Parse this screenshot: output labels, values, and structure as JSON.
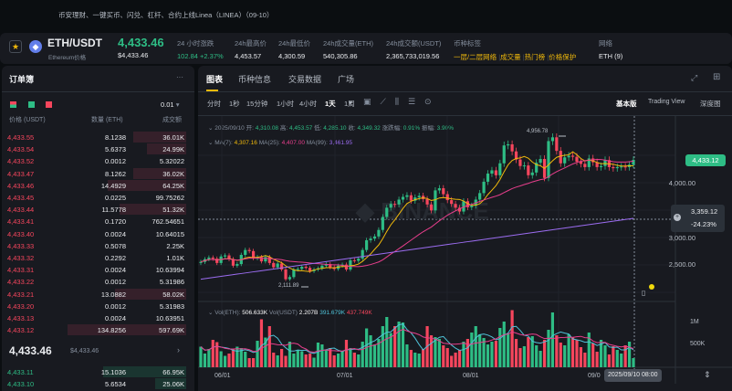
{
  "banner": {
    "text": "币安理财、一键买币、闪兑、杠杆、合约上线Linea（LINEA）（09-10）"
  },
  "header": {
    "symbol": "ETH/USDT",
    "subtitle": "Ethereum价格",
    "price": "4,433.46",
    "price_usd": "$4,433.46",
    "stats": [
      {
        "label": "24 小时涨跌",
        "value": "102.84 +2.37%",
        "color": "#2ebd85"
      },
      {
        "label": "24h最高价",
        "value": "4,453.57"
      },
      {
        "label": "24h最低价",
        "value": "4,300.59"
      },
      {
        "label": "24h成交量(ETH)",
        "value": "540,305.86"
      },
      {
        "label": "24h成交额(USDT)",
        "value": "2,365,733,019.56"
      }
    ],
    "tags_label": "币种标签",
    "tags": [
      "一层/二层网络",
      "成交量",
      "热门榜",
      "价格保护"
    ],
    "network_label": "网络",
    "network": "ETH (9)",
    "accent": "#f0b90b"
  },
  "orderbook": {
    "title": "订单簿",
    "tick": "0.01",
    "cols": [
      "价格 (USDT)",
      "数量 (ETH)",
      "成交额"
    ],
    "asks": [
      [
        "4,433.55",
        "8.1238",
        "36.01K",
        0.45
      ],
      [
        "4,433.54",
        "5.6373",
        "24.99K",
        0.33
      ],
      [
        "4,433.52",
        "0.0012",
        "5.32022",
        0
      ],
      [
        "4,433.47",
        "8.1262",
        "36.02K",
        0.45
      ],
      [
        "4,433.46",
        "14.4929",
        "64.25K",
        0.66
      ],
      [
        "4,433.45",
        "0.0225",
        "99.75262",
        0
      ],
      [
        "4,433.44",
        "11.5778",
        "51.32K",
        0.56
      ],
      [
        "4,433.41",
        "0.1720",
        "762.54651",
        0
      ],
      [
        "4,433.40",
        "0.0024",
        "10.64015",
        0
      ],
      [
        "4,433.33",
        "0.5078",
        "2.25K",
        0
      ],
      [
        "4,433.32",
        "0.2292",
        "1.01K",
        0
      ],
      [
        "4,433.31",
        "0.0024",
        "10.63994",
        0
      ],
      [
        "4,433.22",
        "0.0012",
        "5.31986",
        0
      ],
      [
        "4,433.21",
        "13.0882",
        "58.02K",
        0.6
      ],
      [
        "4,433.20",
        "0.0012",
        "5.31983",
        0
      ],
      [
        "4,433.13",
        "0.0024",
        "10.63951",
        0
      ],
      [
        "4,433.12",
        "134.8256",
        "597.69K",
        1
      ]
    ],
    "mid": "4,433.46",
    "mid_usd": "$4,433.46",
    "bids": [
      [
        "4,433.11",
        "15.1036",
        "66.95K",
        0.7
      ],
      [
        "4,433.10",
        "5.6534",
        "25.06K",
        0.26
      ]
    ],
    "ask_color": "#f6465d",
    "bid_color": "#2ebd85"
  },
  "chart": {
    "tabs": [
      "图表",
      "币种信息",
      "交易数据",
      "广场"
    ],
    "intervals": [
      "分时",
      "1秒",
      "15分钟",
      "1小时",
      "4小时",
      "1天",
      "1周"
    ],
    "active_interval": "1天",
    "views": [
      "基本版",
      "Trading View",
      "深度图"
    ],
    "ohlc": {
      "date": "2025/09/10",
      "labels": [
        "开:",
        "高:",
        "低:",
        "收:",
        "涨跌幅:",
        "振幅:"
      ],
      "values": [
        "4,310.08",
        "4,453.57",
        "4,285.10",
        "4,349.32",
        "0.91%",
        "3.90%"
      ]
    },
    "ma": [
      {
        "label": "MA(7):",
        "value": "4,307.16",
        "color": "#f0b90b"
      },
      {
        "label": "MA(25):",
        "value": "4,407.00",
        "color": "#e83e8c"
      },
      {
        "label": "MA(99):",
        "value": "3,461.95",
        "color": "#9b6cf0"
      }
    ],
    "vol": {
      "labels": [
        "Vol(ETH):",
        "Vol(USDT)"
      ],
      "values": [
        "506.633K",
        "2.207B",
        "391.679K",
        "437.749K"
      ]
    },
    "price_axis": [
      "4,000.00",
      "3,000.00",
      "2,500.00"
    ],
    "vol_axis": [
      "1M",
      "500K"
    ],
    "date_axis": [
      "06/01",
      "07/01",
      "08/01",
      "09/0"
    ],
    "current_price": "4,433.12",
    "crosshair_price": "3,359.12",
    "crosshair_pct": "-24.23%",
    "crosshair_date": "2025/09/10 08:00",
    "high_label": "4,956.78",
    "low_label": "2,111.89"
  },
  "chart_data": {
    "type": "candlestick",
    "closes": [
      2550,
      2600,
      2630,
      2610,
      2530,
      2650,
      2670,
      2600,
      2480,
      2510,
      2680,
      2770,
      2750,
      2620,
      2640,
      2560,
      2640,
      2530,
      2450,
      2520,
      2410,
      2230,
      2270,
      2410,
      2420,
      2460,
      2440,
      2380,
      2410,
      2430,
      2480,
      2510,
      2450,
      2420,
      2480,
      2500,
      2410,
      2580,
      2570,
      2610,
      2770,
      2950,
      2980,
      3020,
      3140,
      3380,
      3550,
      3620,
      3610,
      3700,
      3750,
      3780,
      3680,
      3740,
      3770,
      3710,
      3610,
      3500,
      3870,
      3910,
      3800,
      3690,
      3620,
      3550,
      3480,
      3670,
      3560,
      3590,
      3700,
      3820,
      4030,
      4180,
      4240,
      4150,
      4370,
      4700,
      4720,
      4590,
      4440,
      4320,
      4330,
      4150,
      4200,
      4380,
      4450,
      4100,
      4780,
      4850,
      4600,
      4370,
      4480,
      4510,
      4490,
      4400,
      4360,
      4300,
      4460,
      4390,
      4300,
      4320,
      4430,
      4300,
      4280,
      4300,
      4310,
      4300,
      4345,
      4433
    ],
    "volumes_k": [
      450,
      300,
      400,
      600,
      550,
      350,
      250,
      300,
      400,
      450,
      420,
      340,
      200,
      200,
      580,
      1050,
      650,
      900,
      320,
      260,
      400,
      250,
      560,
      300,
      380,
      350,
      280,
      300,
      210,
      540,
      500,
      380,
      420,
      260,
      300,
      350,
      600,
      420,
      320,
      280,
      560,
      850,
      700,
      500,
      620,
      900,
      1100,
      750,
      900,
      1000,
      980,
      500,
      380,
      320,
      300,
      400,
      900,
      700,
      660,
      620,
      480,
      420,
      250,
      320,
      380,
      560,
      620,
      760,
      900,
      720,
      640,
      500,
      560,
      580,
      860,
      1000,
      740,
      1250,
      620,
      420,
      460,
      660,
      680,
      480,
      360,
      600,
      820,
      1200,
      700,
      540,
      480,
      720,
      660,
      600,
      440,
      320,
      760,
      520,
      340,
      600,
      480,
      280,
      460,
      380,
      300,
      480,
      560,
      200
    ]
  }
}
